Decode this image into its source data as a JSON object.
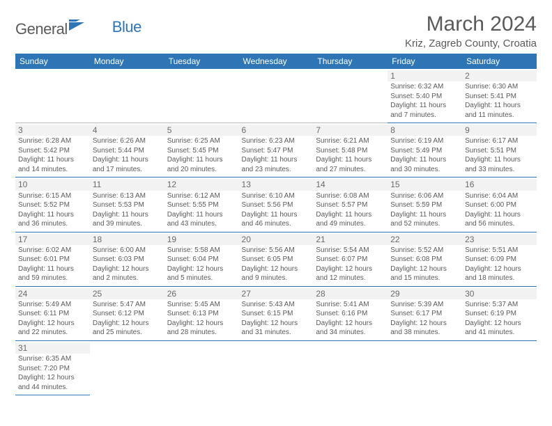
{
  "logo": {
    "part1": "General",
    "part2": "Blue"
  },
  "title": "March 2024",
  "location": "Kriz, Zagreb County, Croatia",
  "colors": {
    "header_bg": "#2e75b6",
    "header_fg": "#ffffff",
    "border": "#2e75b6",
    "text": "#5a5a5a"
  },
  "weekdays": [
    "Sunday",
    "Monday",
    "Tuesday",
    "Wednesday",
    "Thursday",
    "Friday",
    "Saturday"
  ],
  "layout": {
    "first_weekday_index": 5,
    "days_in_month": 31
  },
  "days": {
    "1": {
      "sunrise": "6:32 AM",
      "sunset": "5:40 PM",
      "daylight": "11 hours and 7 minutes."
    },
    "2": {
      "sunrise": "6:30 AM",
      "sunset": "5:41 PM",
      "daylight": "11 hours and 11 minutes."
    },
    "3": {
      "sunrise": "6:28 AM",
      "sunset": "5:42 PM",
      "daylight": "11 hours and 14 minutes."
    },
    "4": {
      "sunrise": "6:26 AM",
      "sunset": "5:44 PM",
      "daylight": "11 hours and 17 minutes."
    },
    "5": {
      "sunrise": "6:25 AM",
      "sunset": "5:45 PM",
      "daylight": "11 hours and 20 minutes."
    },
    "6": {
      "sunrise": "6:23 AM",
      "sunset": "5:47 PM",
      "daylight": "11 hours and 23 minutes."
    },
    "7": {
      "sunrise": "6:21 AM",
      "sunset": "5:48 PM",
      "daylight": "11 hours and 27 minutes."
    },
    "8": {
      "sunrise": "6:19 AM",
      "sunset": "5:49 PM",
      "daylight": "11 hours and 30 minutes."
    },
    "9": {
      "sunrise": "6:17 AM",
      "sunset": "5:51 PM",
      "daylight": "11 hours and 33 minutes."
    },
    "10": {
      "sunrise": "6:15 AM",
      "sunset": "5:52 PM",
      "daylight": "11 hours and 36 minutes."
    },
    "11": {
      "sunrise": "6:13 AM",
      "sunset": "5:53 PM",
      "daylight": "11 hours and 39 minutes."
    },
    "12": {
      "sunrise": "6:12 AM",
      "sunset": "5:55 PM",
      "daylight": "11 hours and 43 minutes."
    },
    "13": {
      "sunrise": "6:10 AM",
      "sunset": "5:56 PM",
      "daylight": "11 hours and 46 minutes."
    },
    "14": {
      "sunrise": "6:08 AM",
      "sunset": "5:57 PM",
      "daylight": "11 hours and 49 minutes."
    },
    "15": {
      "sunrise": "6:06 AM",
      "sunset": "5:59 PM",
      "daylight": "11 hours and 52 minutes."
    },
    "16": {
      "sunrise": "6:04 AM",
      "sunset": "6:00 PM",
      "daylight": "11 hours and 56 minutes."
    },
    "17": {
      "sunrise": "6:02 AM",
      "sunset": "6:01 PM",
      "daylight": "11 hours and 59 minutes."
    },
    "18": {
      "sunrise": "6:00 AM",
      "sunset": "6:03 PM",
      "daylight": "12 hours and 2 minutes."
    },
    "19": {
      "sunrise": "5:58 AM",
      "sunset": "6:04 PM",
      "daylight": "12 hours and 5 minutes."
    },
    "20": {
      "sunrise": "5:56 AM",
      "sunset": "6:05 PM",
      "daylight": "12 hours and 9 minutes."
    },
    "21": {
      "sunrise": "5:54 AM",
      "sunset": "6:07 PM",
      "daylight": "12 hours and 12 minutes."
    },
    "22": {
      "sunrise": "5:52 AM",
      "sunset": "6:08 PM",
      "daylight": "12 hours and 15 minutes."
    },
    "23": {
      "sunrise": "5:51 AM",
      "sunset": "6:09 PM",
      "daylight": "12 hours and 18 minutes."
    },
    "24": {
      "sunrise": "5:49 AM",
      "sunset": "6:11 PM",
      "daylight": "12 hours and 22 minutes."
    },
    "25": {
      "sunrise": "5:47 AM",
      "sunset": "6:12 PM",
      "daylight": "12 hours and 25 minutes."
    },
    "26": {
      "sunrise": "5:45 AM",
      "sunset": "6:13 PM",
      "daylight": "12 hours and 28 minutes."
    },
    "27": {
      "sunrise": "5:43 AM",
      "sunset": "6:15 PM",
      "daylight": "12 hours and 31 minutes."
    },
    "28": {
      "sunrise": "5:41 AM",
      "sunset": "6:16 PM",
      "daylight": "12 hours and 34 minutes."
    },
    "29": {
      "sunrise": "5:39 AM",
      "sunset": "6:17 PM",
      "daylight": "12 hours and 38 minutes."
    },
    "30": {
      "sunrise": "5:37 AM",
      "sunset": "6:19 PM",
      "daylight": "12 hours and 41 minutes."
    },
    "31": {
      "sunrise": "6:35 AM",
      "sunset": "7:20 PM",
      "daylight": "12 hours and 44 minutes."
    }
  },
  "labels": {
    "sunrise": "Sunrise: ",
    "sunset": "Sunset: ",
    "daylight": "Daylight: "
  }
}
